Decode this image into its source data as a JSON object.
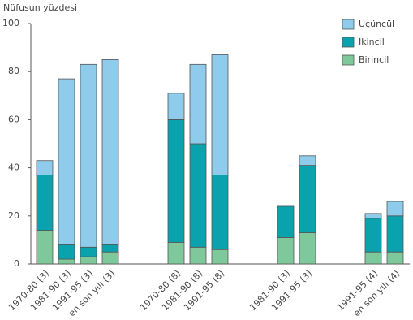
{
  "chart_data": {
    "type": "stacked_bar",
    "y_label": "Nüfusun yüzdesi",
    "categories": [
      "1970-80 (3)",
      "1981-90 (3)",
      "1991-95 (3)",
      "en son yılı (3)",
      null,
      null,
      "1970-80 (8)",
      "1981-90 (8)",
      "1991-95 (8)",
      null,
      null,
      "1981-90 (3)",
      "1991-95 (3)",
      null,
      null,
      "1991-95 (4)",
      "en son yılı (4)"
    ],
    "series": [
      {
        "name": "Birincil",
        "color": "#7ec89b",
        "values": [
          14,
          2,
          3,
          5,
          null,
          null,
          9,
          7,
          6,
          null,
          null,
          11,
          13,
          null,
          null,
          5,
          5
        ]
      },
      {
        "name": "İkincil",
        "color": "#0aa2ad",
        "values": [
          23,
          6,
          4,
          3,
          null,
          null,
          51,
          43,
          31,
          null,
          null,
          13,
          28,
          null,
          null,
          14,
          15
        ]
      },
      {
        "name": "Üçüncül",
        "color": "#8fcbeb",
        "values": [
          6,
          69,
          76,
          77,
          null,
          null,
          11,
          33,
          50,
          null,
          null,
          0,
          4,
          null,
          null,
          2,
          6
        ]
      }
    ],
    "ylim": [
      0,
      100
    ],
    "yticks": [
      0,
      20,
      40,
      60,
      80,
      100
    ],
    "legend": "top-right",
    "grid": false
  }
}
